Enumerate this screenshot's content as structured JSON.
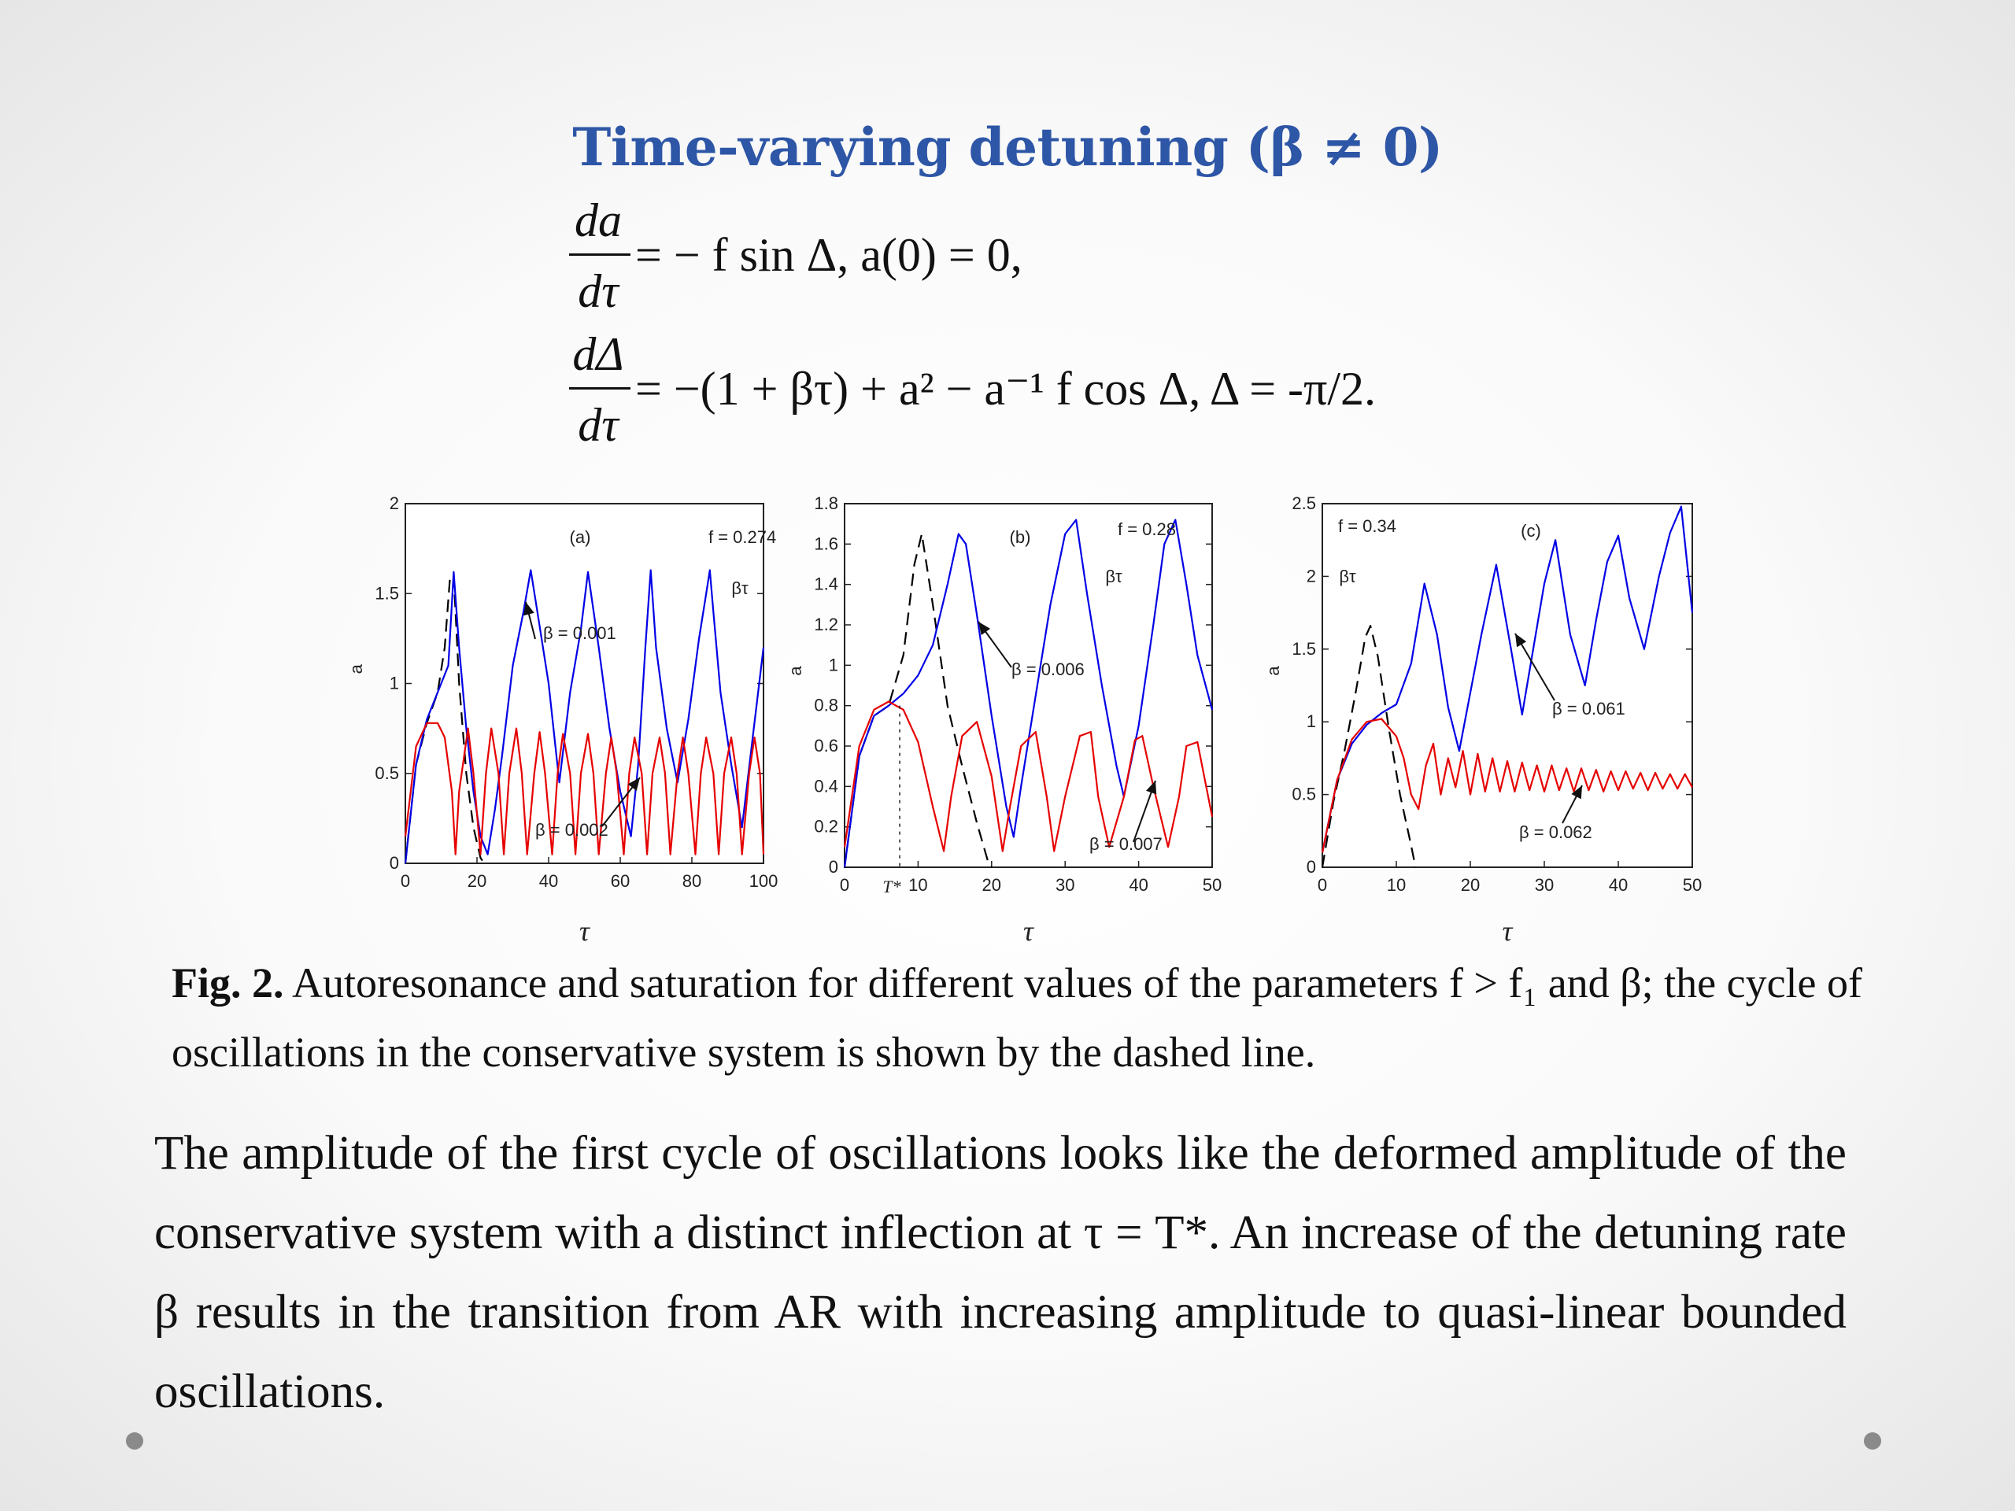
{
  "title": "Time-varying detuning (β ≠ 0)",
  "equations": {
    "eq1": {
      "num": "da",
      "den": "dτ",
      "rhs": "= − f sin Δ,  a(0) = 0,"
    },
    "eq2": {
      "num": "dΔ",
      "den": "dτ",
      "rhs": "= −(1 + βτ) + a² − a⁻¹ f cos Δ,  Δ = -π/2."
    }
  },
  "caption": {
    "label": "Fig. 2.",
    "text": "Autoresonance and saturation for different values of the parameters f > f₁ and β; the cycle of oscillations in the conservative system is shown by the dashed line."
  },
  "paragraph": "The amplitude of the first cycle of oscillations looks like the deformed amplitude of the conservative system with a distinct inflection at τ = T*. An increase of the detuning rate β results in the transition from AR with increasing amplitude to quasi-linear bounded oscillations.",
  "colors": {
    "title": "#2e56a6",
    "blue_series": "#0000e6",
    "red_series": "#e60000",
    "dashed_series": "#000000"
  },
  "chart_data": [
    {
      "type": "line",
      "panel_label": "(a)",
      "f_label": "f = 0.274",
      "beta_tau_label": "βτ",
      "xlabel": "τ",
      "ylabel": "a",
      "xlim": [
        0,
        100
      ],
      "ylim": [
        0,
        2
      ],
      "xticks": [
        "0",
        "20",
        "40",
        "60",
        "80",
        "100"
      ],
      "yticks": [
        "0",
        "0.5",
        "1",
        "1.5",
        "2"
      ],
      "annotations": [
        "β = 0.001",
        "β = 0.002"
      ],
      "series": [
        {
          "style": "dashed",
          "color": "#000000",
          "x": [
            0,
            3,
            6,
            9,
            11,
            12.5,
            13.5,
            15,
            17,
            19,
            21,
            22
          ],
          "y": [
            0,
            0.55,
            0.78,
            0.95,
            1.2,
            1.6,
            1.6,
            1.0,
            0.5,
            0.2,
            0.03,
            0
          ]
        },
        {
          "style": "solid",
          "color": "#0000e6",
          "x": [
            0,
            3,
            6,
            9,
            12,
            13.5,
            15,
            17,
            19,
            21,
            23,
            25,
            27,
            30,
            33,
            35,
            37,
            40,
            43,
            46,
            49,
            51,
            54,
            57,
            60,
            63,
            65,
            67,
            68.5,
            70,
            73,
            76,
            79,
            82,
            84,
            85,
            86,
            88,
            91,
            94,
            97,
            100
          ],
          "y": [
            0,
            0.55,
            0.8,
            0.95,
            1.1,
            1.62,
            1.2,
            0.75,
            0.4,
            0.15,
            0.05,
            0.3,
            0.6,
            1.1,
            1.4,
            1.63,
            1.38,
            1.0,
            0.45,
            0.95,
            1.3,
            1.62,
            1.2,
            0.75,
            0.4,
            0.15,
            0.55,
            1.2,
            1.63,
            1.2,
            0.75,
            0.45,
            0.8,
            1.25,
            1.5,
            1.63,
            1.4,
            0.95,
            0.55,
            0.2,
            0.7,
            1.2
          ]
        },
        {
          "style": "solid",
          "color": "#e60000",
          "x": [
            0,
            3,
            6,
            9,
            11,
            13,
            14,
            15,
            17.5,
            19,
            21,
            22.5,
            24,
            26,
            27.5,
            29,
            31,
            32.5,
            34,
            36,
            37.5,
            39,
            41,
            42.5,
            44,
            46,
            47.5,
            49,
            51,
            52.5,
            54,
            56,
            57.5,
            59,
            61,
            62.5,
            64,
            66,
            67.5,
            69,
            71,
            72.5,
            74,
            76,
            77.5,
            79,
            81,
            82.5,
            84,
            86,
            87.5,
            89,
            91,
            92.5,
            94,
            96,
            97.5,
            99,
            100
          ],
          "y": [
            0.15,
            0.65,
            0.78,
            0.78,
            0.7,
            0.4,
            0.05,
            0.4,
            0.75,
            0.5,
            0.05,
            0.5,
            0.75,
            0.5,
            0.05,
            0.5,
            0.75,
            0.5,
            0.05,
            0.5,
            0.73,
            0.5,
            0.05,
            0.5,
            0.72,
            0.5,
            0.05,
            0.5,
            0.72,
            0.5,
            0.05,
            0.5,
            0.7,
            0.5,
            0.05,
            0.5,
            0.7,
            0.5,
            0.05,
            0.5,
            0.7,
            0.5,
            0.05,
            0.5,
            0.7,
            0.5,
            0.05,
            0.5,
            0.7,
            0.5,
            0.05,
            0.5,
            0.7,
            0.5,
            0.05,
            0.5,
            0.7,
            0.5,
            0.05
          ]
        }
      ]
    },
    {
      "type": "line",
      "panel_label": "(b)",
      "f_label": "f = 0.28",
      "beta_tau_label": "βτ",
      "xlabel": "τ",
      "ylabel": "a",
      "xlim": [
        0,
        50
      ],
      "ylim": [
        0,
        1.8
      ],
      "xticks": [
        "0",
        "10",
        "20",
        "30",
        "40",
        "50"
      ],
      "yticks": [
        "0",
        "0.2",
        "0.4",
        "0.6",
        "0.8",
        "1",
        "1.2",
        "1.4",
        "1.6",
        "1.8"
      ],
      "tstar_label": "T*",
      "annotations": [
        "β = 0.006",
        "β = 0.007"
      ],
      "series": [
        {
          "style": "dashed",
          "color": "#000000",
          "x": [
            0,
            2,
            4,
            6,
            8,
            9.5,
            10.5,
            12,
            14,
            16,
            18,
            19.5,
            20
          ],
          "y": [
            0,
            0.55,
            0.75,
            0.8,
            1.05,
            1.5,
            1.65,
            1.3,
            0.8,
            0.5,
            0.22,
            0.03,
            0
          ]
        },
        {
          "style": "solid",
          "color": "#0000e6",
          "x": [
            0,
            2,
            4,
            6,
            8,
            10,
            12,
            14,
            15.5,
            16.5,
            18,
            20,
            22,
            23,
            24,
            26,
            28,
            30,
            31.5,
            33,
            35,
            37,
            38,
            40,
            42,
            43.5,
            45,
            46.5,
            48,
            50
          ],
          "y": [
            0,
            0.55,
            0.75,
            0.8,
            0.86,
            0.95,
            1.1,
            1.4,
            1.65,
            1.6,
            1.25,
            0.75,
            0.3,
            0.15,
            0.4,
            0.85,
            1.3,
            1.65,
            1.72,
            1.35,
            0.9,
            0.5,
            0.35,
            0.7,
            1.2,
            1.6,
            1.72,
            1.4,
            1.05,
            0.78
          ]
        },
        {
          "style": "solid",
          "color": "#e60000",
          "x": [
            0,
            2,
            4,
            6,
            8,
            10,
            12,
            13.5,
            14.5,
            16,
            18,
            20,
            21.5,
            22.5,
            24,
            26,
            27.5,
            28.5,
            30,
            32,
            33.5,
            34.5,
            36,
            38,
            39.5,
            40.5,
            42,
            44,
            45.5,
            46.5,
            48,
            50
          ],
          "y": [
            0.1,
            0.6,
            0.78,
            0.82,
            0.78,
            0.62,
            0.3,
            0.08,
            0.35,
            0.65,
            0.72,
            0.45,
            0.08,
            0.3,
            0.6,
            0.67,
            0.35,
            0.08,
            0.35,
            0.65,
            0.67,
            0.35,
            0.1,
            0.35,
            0.63,
            0.65,
            0.4,
            0.1,
            0.35,
            0.6,
            0.62,
            0.25
          ]
        }
      ]
    },
    {
      "type": "line",
      "panel_label": "(c)",
      "f_label": "f = 0.34",
      "beta_tau_label": "βτ",
      "xlabel": "τ",
      "ylabel": "a",
      "xlim": [
        0,
        50
      ],
      "ylim": [
        0,
        2.5
      ],
      "xticks": [
        "0",
        "10",
        "20",
        "30",
        "40",
        "50"
      ],
      "yticks": [
        "0",
        "0.5",
        "1",
        "1.5",
        "2",
        "2.5"
      ],
      "annotations": [
        "β = 0.061",
        "β = 0.062"
      ],
      "series": [
        {
          "style": "dashed",
          "color": "#000000",
          "x": [
            0,
            1.5,
            3,
            4.5,
            5.8,
            6.5,
            7.5,
            9,
            10.5,
            12,
            12.6
          ],
          "y": [
            0,
            0.45,
            0.8,
            1.2,
            1.58,
            1.66,
            1.45,
            0.95,
            0.5,
            0.15,
            0
          ]
        },
        {
          "style": "solid",
          "color": "#0000e6",
          "x": [
            0,
            2,
            4,
            6,
            8,
            10,
            12,
            13.8,
            15.5,
            17,
            18.5,
            20,
            21.5,
            23.5,
            25.5,
            27,
            28.5,
            30,
            31.5,
            33.5,
            35.5,
            37,
            38.5,
            40,
            41.5,
            43.5,
            45.5,
            47,
            48.5,
            50
          ],
          "y": [
            0.1,
            0.6,
            0.85,
            0.98,
            1.06,
            1.12,
            1.4,
            1.95,
            1.6,
            1.1,
            0.8,
            1.2,
            1.6,
            2.08,
            1.5,
            1.05,
            1.5,
            1.95,
            2.25,
            1.6,
            1.25,
            1.7,
            2.1,
            2.28,
            1.85,
            1.5,
            2.0,
            2.3,
            2.48,
            1.75
          ]
        },
        {
          "style": "solid",
          "color": "#e60000",
          "x": [
            0,
            2,
            4,
            6,
            8,
            10,
            11,
            12,
            13,
            14,
            15,
            16,
            17,
            18,
            19,
            20,
            21,
            22,
            23,
            24,
            25,
            26,
            27,
            28,
            29,
            30,
            31,
            32,
            33,
            34,
            35,
            36,
            37,
            38,
            39,
            40,
            41,
            42,
            43,
            44,
            45,
            46,
            47,
            48,
            49,
            50
          ],
          "y": [
            0.1,
            0.6,
            0.88,
            1.0,
            1.02,
            0.9,
            0.75,
            0.5,
            0.4,
            0.7,
            0.85,
            0.5,
            0.75,
            0.55,
            0.8,
            0.5,
            0.78,
            0.52,
            0.75,
            0.52,
            0.73,
            0.52,
            0.72,
            0.53,
            0.7,
            0.52,
            0.7,
            0.53,
            0.68,
            0.52,
            0.68,
            0.53,
            0.67,
            0.52,
            0.66,
            0.53,
            0.66,
            0.54,
            0.65,
            0.53,
            0.65,
            0.54,
            0.64,
            0.54,
            0.64,
            0.55
          ]
        }
      ]
    }
  ]
}
